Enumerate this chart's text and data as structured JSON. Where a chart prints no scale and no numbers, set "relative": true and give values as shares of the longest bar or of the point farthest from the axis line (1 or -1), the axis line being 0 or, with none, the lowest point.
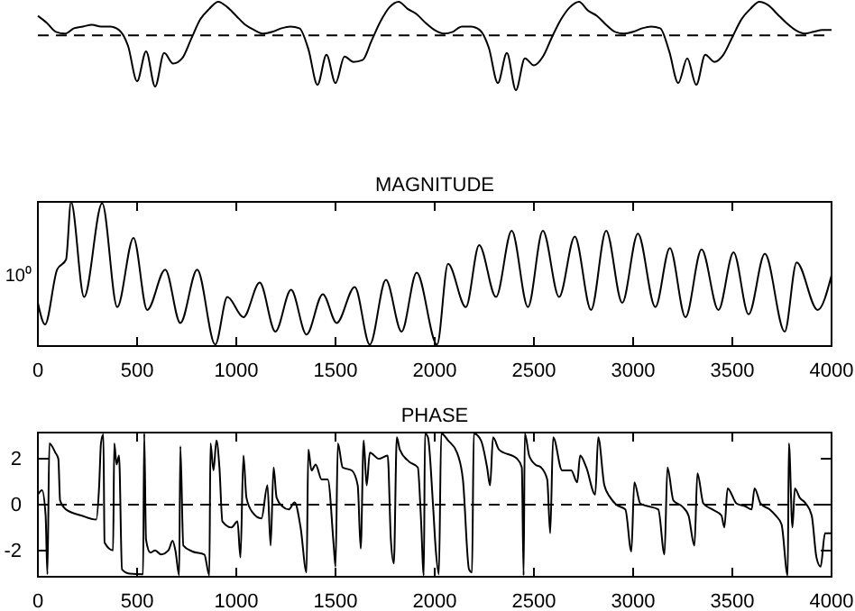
{
  "chart_data": [
    {
      "type": "line",
      "relative": true,
      "categories": [
        null,
        null,
        null,
        null,
        null,
        null,
        null,
        null,
        null,
        null,
        null,
        null,
        null,
        null,
        null,
        null,
        null,
        null,
        null,
        null,
        null,
        null,
        null,
        null,
        null,
        null,
        null,
        null,
        null,
        null,
        null,
        null,
        null,
        null,
        null,
        null,
        null,
        null,
        null,
        null,
        null,
        null,
        null,
        null,
        null,
        null,
        null,
        null,
        null,
        null,
        null,
        null,
        null,
        null,
        null,
        null,
        null,
        null,
        null,
        null,
        null,
        null,
        null,
        null,
        null,
        null,
        null,
        null,
        null,
        null,
        null,
        null,
        null,
        null,
        null,
        null,
        null,
        null,
        null,
        null,
        null,
        null,
        null,
        null,
        null,
        null,
        null,
        null,
        null
      ],
      "series": [
        {
          "color": "#000000",
          "values": [
            0.84,
            0.76,
            0.66,
            0.64,
            0.7,
            0.72,
            0.74,
            0.72,
            0.72,
            0.68,
            0.5,
            0.1,
            0.44,
            0.04,
            0.42,
            0.3,
            0.36,
            0.58,
            0.8,
            0.92,
            1,
            0.94,
            0.84,
            0.74,
            0.68,
            0.64,
            0.66,
            0.7,
            0.72,
            0.7,
            0.46,
            0.06,
            0.4,
            0.08,
            0.38,
            0.32,
            0.34,
            0.56,
            0.78,
            0.94,
            1,
            0.92,
            0.86,
            0.76,
            0.68,
            0.64,
            0.66,
            0.72,
            0.72,
            0.68,
            0.48,
            0.08,
            0.42,
            0,
            0.36,
            0.28,
            0.38,
            0.6,
            0.8,
            0.94,
            1,
            0.9,
            0.84,
            0.74,
            0.66,
            0.64,
            0.66,
            0.7,
            0.72,
            0.7,
            0.44,
            0.08,
            0.36,
            0.06,
            0.4,
            0.32,
            0.4,
            0.6,
            0.8,
            0.92,
            1,
            0.96,
            0.86,
            0.76,
            0.68,
            0.64,
            0.66,
            0.68,
            0.68
          ]
        }
      ],
      "ref_lines": [
        {
          "axis": "y",
          "value": 0.62,
          "line_style": "dashed"
        }
      ]
    },
    {
      "type": "line",
      "title": "MAGNITUDE",
      "relative": true,
      "xlim": [
        0,
        4000
      ],
      "xticks": [
        0,
        500,
        1000,
        1500,
        2000,
        2500,
        3000,
        3500,
        4000
      ],
      "annotations": [
        "10⁰"
      ],
      "x": [
        0,
        36,
        97,
        142,
        167,
        233,
        324,
        400,
        482,
        551,
        642,
        718,
        803,
        894,
        955,
        1036,
        1118,
        1197,
        1276,
        1354,
        1436,
        1506,
        1597,
        1673,
        1754,
        1833,
        1909,
        2012,
        2067,
        2157,
        2224,
        2309,
        2388,
        2470,
        2545,
        2627,
        2706,
        2788,
        2864,
        2945,
        3024,
        3112,
        3185,
        3264,
        3345,
        3430,
        3506,
        3582,
        3664,
        3764,
        3824,
        3930,
        4000
      ],
      "series": [
        {
          "color": "#000000",
          "values": [
            0.3,
            0.15,
            0.53,
            0.6,
            1,
            0.34,
            0.99,
            0.27,
            0.75,
            0.25,
            0.53,
            0.16,
            0.53,
            0.01,
            0.34,
            0.2,
            0.44,
            0.1,
            0.39,
            0.08,
            0.36,
            0.16,
            0.41,
            0.01,
            0.46,
            0.1,
            0.51,
            0.01,
            0.57,
            0.27,
            0.7,
            0.34,
            0.8,
            0.27,
            0.8,
            0.34,
            0.76,
            0.25,
            0.8,
            0.3,
            0.78,
            0.27,
            0.68,
            0.2,
            0.67,
            0.25,
            0.65,
            0.22,
            0.64,
            0.1,
            0.58,
            0.25,
            0.49
          ]
        }
      ]
    },
    {
      "type": "line",
      "title": "PHASE",
      "xlim": [
        0,
        4000
      ],
      "xticks": [
        0,
        500,
        1000,
        1500,
        2000,
        2500,
        3000,
        3500,
        4000
      ],
      "ylim": [
        -3.14,
        3.14
      ],
      "yticks": [
        -2,
        0,
        2
      ],
      "x": [
        0,
        21,
        39,
        48,
        58,
        88,
        103,
        112,
        142,
        218,
        294,
        309,
        318,
        330,
        336,
        379,
        385,
        397,
        409,
        424,
        461,
        530,
        536,
        545,
        567,
        591,
        621,
        658,
        679,
        694,
        712,
        718,
        733,
        779,
        839,
        864,
        870,
        885,
        900,
        915,
        930,
        976,
        1006,
        1021,
        1036,
        1051,
        1082,
        1127,
        1157,
        1173,
        1188,
        1203,
        1233,
        1264,
        1294,
        1324,
        1354,
        1363,
        1379,
        1400,
        1430,
        1461,
        1491,
        1500,
        1512,
        1536,
        1582,
        1612,
        1627,
        1642,
        1657,
        1673,
        1718,
        1763,
        1779,
        1794,
        1809,
        1824,
        1870,
        1915,
        1930,
        1945,
        1951,
        1966,
        1991,
        2006,
        2021,
        2033,
        2067,
        2112,
        2142,
        2173,
        2188,
        2197,
        2233,
        2264,
        2279,
        2294,
        2324,
        2415,
        2439,
        2448,
        2454,
        2476,
        2506,
        2536,
        2567,
        2582,
        2597,
        2642,
        2688,
        2718,
        2733,
        2764,
        2809,
        2824,
        2855,
        2885,
        2915,
        2961,
        2991,
        3006,
        3036,
        3082,
        3127,
        3158,
        3173,
        3203,
        3248,
        3279,
        3309,
        3324,
        3354,
        3400,
        3445,
        3460,
        3476,
        3521,
        3567,
        3597,
        3612,
        3642,
        3688,
        3718,
        3748,
        3779,
        3785,
        3803,
        3815,
        3839,
        3870,
        3900,
        3924,
        3945,
        3967,
        4000
      ],
      "series": [
        {
          "color": "#000000",
          "values": [
            0.44,
            0.63,
            -0.47,
            -3.03,
            2.67,
            2.27,
            2.0,
            0.18,
            -0.21,
            -0.47,
            -0.65,
            0.84,
            2.67,
            3.06,
            -1.65,
            -1.99,
            2.67,
            1.75,
            2.14,
            -2.82,
            -3.0,
            -3.03,
            3.1,
            -1.52,
            -2.09,
            -1.99,
            -2.17,
            -1.99,
            -1.57,
            -2.04,
            -3.08,
            2.54,
            -1.78,
            -2.04,
            -2.17,
            -3.08,
            2.67,
            1.49,
            2.8,
            1.62,
            -0.73,
            -0.99,
            -0.73,
            -2.3,
            2.14,
            0.31,
            -0.34,
            -0.6,
            0.84,
            -1.78,
            1.62,
            0.31,
            -0.08,
            -0.21,
            0.1,
            -0.99,
            -2.95,
            2.4,
            1.49,
            1.75,
            1.1,
            1.1,
            -1.78,
            -2.7,
            2.67,
            1.62,
            1.49,
            0.84,
            -1.91,
            2.8,
            0.84,
            2.27,
            2.0,
            2.14,
            -1.52,
            -2.56,
            2.93,
            2.4,
            1.88,
            1.62,
            -0.47,
            -3.08,
            3.1,
            2.93,
            0.05,
            -2.04,
            -3.03,
            3.1,
            2.8,
            2.27,
            1.1,
            -2.82,
            -2.95,
            3.1,
            2.8,
            1.62,
            0.84,
            2.93,
            2.4,
            2.0,
            1.62,
            -3.08,
            3.1,
            2.14,
            1.75,
            1.62,
            1.1,
            -1.25,
            2.93,
            1.49,
            1.49,
            0.97,
            2.14,
            1.62,
            0.44,
            2.93,
            0.84,
            0.31,
            0,
            -0.21,
            -2.04,
            0.97,
            0.05,
            -0.08,
            -0.21,
            -2.17,
            1.62,
            0.18,
            -0.08,
            -0.47,
            -1.78,
            1.36,
            0.05,
            -0.21,
            -0.47,
            -0.99,
            0.71,
            0.05,
            -0.08,
            -0.21,
            0.71,
            0.05,
            -0.21,
            -0.47,
            -0.86,
            -3.08,
            2.67,
            -0.99,
            0.71,
            0.31,
            0.05,
            -0.47,
            -2.3,
            -2.7,
            -1.25,
            -1.25
          ]
        }
      ],
      "ref_lines": [
        {
          "axis": "y",
          "value": 0,
          "line_style": "dashed"
        }
      ]
    }
  ]
}
